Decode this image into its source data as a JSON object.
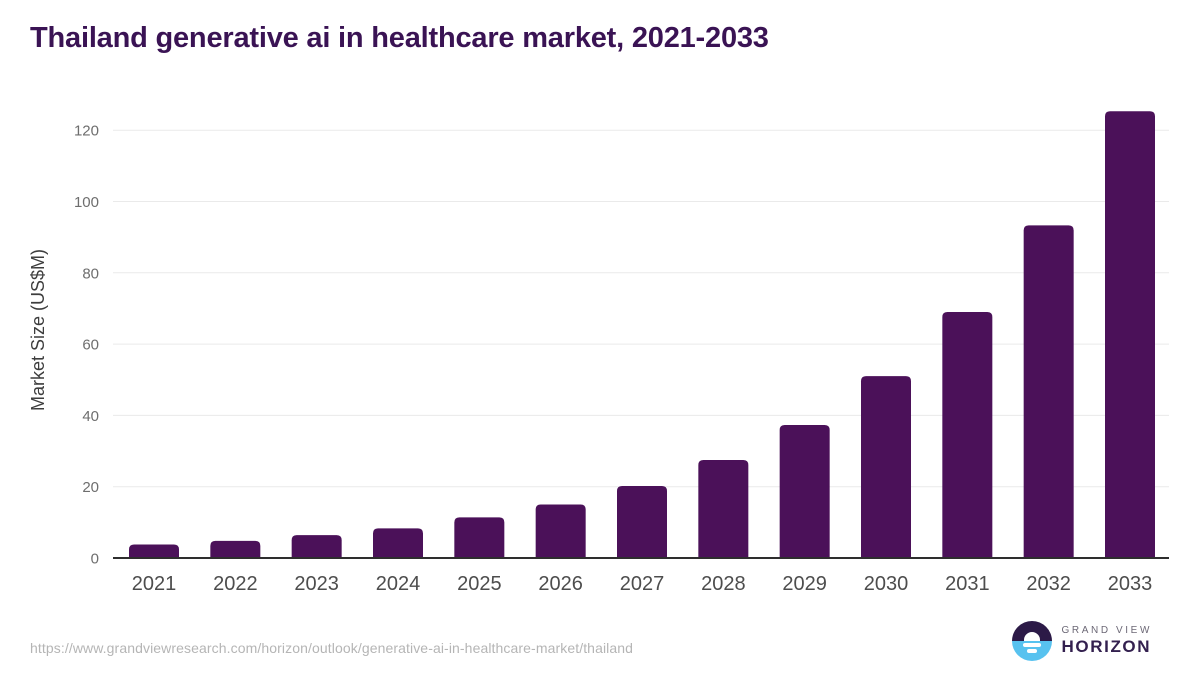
{
  "header": {
    "title": "Thailand generative ai in healthcare market, 2021-2033",
    "title_color": "#3a1354"
  },
  "chart_data": {
    "type": "bar",
    "title": "Thailand generative ai in healthcare market, 2021-2033",
    "categories": [
      "2021",
      "2022",
      "2023",
      "2024",
      "2025",
      "2026",
      "2027",
      "2028",
      "2029",
      "2030",
      "2031",
      "2032",
      "2033"
    ],
    "values": [
      3.8,
      4.8,
      6.4,
      8.3,
      11.4,
      15.0,
      20.2,
      27.5,
      37.3,
      51.0,
      69.0,
      93.3,
      125.3
    ],
    "xlabel": "",
    "ylabel": "Market Size (US$M)",
    "yticks": [
      0,
      20,
      40,
      60,
      80,
      100,
      120
    ],
    "ylim": [
      0,
      130
    ],
    "grid": true,
    "legend": "none",
    "bar_color": "#4b1159",
    "gridline_color": "#eaeaea",
    "axis_line_color": "#2e2e2e",
    "ytick_label_color": "#6e6e6e",
    "xtick_label_color": "#4d4d4d",
    "ylabel_color": "#3d3d3d"
  },
  "footer": {
    "source_url": "https://www.grandviewresearch.com/horizon/outlook/generative-ai-in-healthcare-market/thailand",
    "logo": {
      "line1": "GRAND VIEW",
      "line2": "HORIZON",
      "icon_top_color": "#2c1a47",
      "icon_bottom_color": "#58c2ef"
    }
  }
}
